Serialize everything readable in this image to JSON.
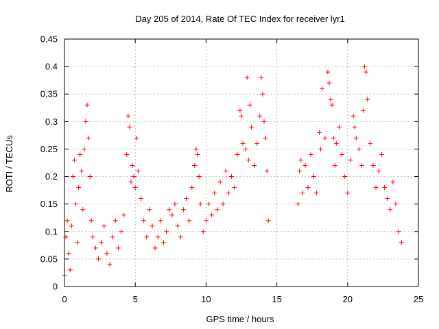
{
  "chart_data": {
    "type": "scatter",
    "title": "Day 205 of 2014, Rate Of TEC Index for receiver lyr1",
    "xlabel": "GPS time / hours",
    "ylabel": "ROTI / TECUs",
    "xlim": [
      0,
      25
    ],
    "ylim": [
      0,
      0.45
    ],
    "xticks": [
      0,
      5,
      10,
      15,
      20,
      25
    ],
    "xtick_labels": [
      "0",
      "5",
      "10",
      "15",
      "20",
      "25"
    ],
    "yticks": [
      0,
      0.05,
      0.1,
      0.15,
      0.2,
      0.25,
      0.3,
      0.35,
      0.4,
      0.45
    ],
    "ytick_labels": [
      "0",
      "0.05",
      "0.1",
      "0.15",
      "0.2",
      "0.25",
      "0.3",
      "0.35",
      "0.4",
      "0.45"
    ],
    "grid": true,
    "marker": "+",
    "marker_color": "#ff0000",
    "data_gap_hours": [
      14.5,
      16.4
    ],
    "series": [
      {
        "name": "ROTI",
        "points": [
          [
            0.0,
            0.02
          ],
          [
            0.1,
            0.09
          ],
          [
            0.2,
            0.12
          ],
          [
            0.3,
            0.06
          ],
          [
            0.4,
            0.03
          ],
          [
            0.5,
            0.11
          ],
          [
            0.6,
            0.2
          ],
          [
            0.7,
            0.23
          ],
          [
            0.8,
            0.15
          ],
          [
            0.9,
            0.08
          ],
          [
            1.0,
            0.18
          ],
          [
            1.1,
            0.24
          ],
          [
            1.2,
            0.21
          ],
          [
            1.3,
            0.14
          ],
          [
            1.4,
            0.25
          ],
          [
            1.5,
            0.3
          ],
          [
            1.6,
            0.33
          ],
          [
            1.7,
            0.27
          ],
          [
            1.8,
            0.2
          ],
          [
            1.9,
            0.12
          ],
          [
            2.0,
            0.09
          ],
          [
            2.2,
            0.07
          ],
          [
            2.4,
            0.05
          ],
          [
            2.6,
            0.08
          ],
          [
            2.8,
            0.11
          ],
          [
            3.0,
            0.06
          ],
          [
            3.2,
            0.04
          ],
          [
            3.4,
            0.09
          ],
          [
            3.6,
            0.12
          ],
          [
            3.8,
            0.07
          ],
          [
            4.0,
            0.1
          ],
          [
            4.2,
            0.13
          ],
          [
            4.4,
            0.24
          ],
          [
            4.5,
            0.31
          ],
          [
            4.6,
            0.29
          ],
          [
            4.7,
            0.19
          ],
          [
            4.8,
            0.22
          ],
          [
            4.9,
            0.2
          ],
          [
            5.0,
            0.18
          ],
          [
            5.1,
            0.27
          ],
          [
            5.2,
            0.21
          ],
          [
            5.4,
            0.16
          ],
          [
            5.6,
            0.12
          ],
          [
            5.8,
            0.09
          ],
          [
            6.0,
            0.14
          ],
          [
            6.2,
            0.11
          ],
          [
            6.4,
            0.07
          ],
          [
            6.6,
            0.09
          ],
          [
            6.8,
            0.12
          ],
          [
            7.0,
            0.08
          ],
          [
            7.2,
            0.1
          ],
          [
            7.4,
            0.14
          ],
          [
            7.6,
            0.13
          ],
          [
            7.8,
            0.15
          ],
          [
            8.0,
            0.11
          ],
          [
            8.2,
            0.09
          ],
          [
            8.4,
            0.14
          ],
          [
            8.6,
            0.16
          ],
          [
            8.8,
            0.12
          ],
          [
            9.0,
            0.18
          ],
          [
            9.2,
            0.22
          ],
          [
            9.3,
            0.25
          ],
          [
            9.4,
            0.24
          ],
          [
            9.5,
            0.2
          ],
          [
            9.6,
            0.15
          ],
          [
            9.8,
            0.1
          ],
          [
            10.0,
            0.12
          ],
          [
            10.2,
            0.15
          ],
          [
            10.4,
            0.13
          ],
          [
            10.6,
            0.17
          ],
          [
            10.8,
            0.14
          ],
          [
            11.0,
            0.19
          ],
          [
            11.2,
            0.15
          ],
          [
            11.4,
            0.21
          ],
          [
            11.6,
            0.17
          ],
          [
            11.8,
            0.2
          ],
          [
            12.0,
            0.18
          ],
          [
            12.2,
            0.24
          ],
          [
            12.4,
            0.32
          ],
          [
            12.5,
            0.31
          ],
          [
            12.6,
            0.26
          ],
          [
            12.8,
            0.25
          ],
          [
            12.9,
            0.38
          ],
          [
            13.0,
            0.23
          ],
          [
            13.1,
            0.33
          ],
          [
            13.2,
            0.29
          ],
          [
            13.4,
            0.22
          ],
          [
            13.6,
            0.26
          ],
          [
            13.8,
            0.31
          ],
          [
            13.9,
            0.38
          ],
          [
            14.0,
            0.35
          ],
          [
            14.1,
            0.3
          ],
          [
            14.2,
            0.27
          ],
          [
            14.3,
            0.21
          ],
          [
            14.4,
            0.12
          ],
          [
            16.5,
            0.15
          ],
          [
            16.6,
            0.21
          ],
          [
            16.7,
            0.23
          ],
          [
            16.8,
            0.17
          ],
          [
            17.0,
            0.22
          ],
          [
            17.2,
            0.18
          ],
          [
            17.4,
            0.24
          ],
          [
            17.6,
            0.2
          ],
          [
            17.8,
            0.17
          ],
          [
            18.0,
            0.28
          ],
          [
            18.1,
            0.25
          ],
          [
            18.2,
            0.36
          ],
          [
            18.4,
            0.27
          ],
          [
            18.6,
            0.39
          ],
          [
            18.7,
            0.37
          ],
          [
            18.8,
            0.34
          ],
          [
            18.9,
            0.33
          ],
          [
            19.0,
            0.27
          ],
          [
            19.1,
            0.22
          ],
          [
            19.2,
            0.26
          ],
          [
            19.4,
            0.29
          ],
          [
            19.6,
            0.24
          ],
          [
            19.8,
            0.2
          ],
          [
            20.0,
            0.17
          ],
          [
            20.2,
            0.23
          ],
          [
            20.4,
            0.31
          ],
          [
            20.5,
            0.29
          ],
          [
            20.6,
            0.27
          ],
          [
            20.8,
            0.25
          ],
          [
            21.0,
            0.22
          ],
          [
            21.1,
            0.32
          ],
          [
            21.2,
            0.4
          ],
          [
            21.3,
            0.39
          ],
          [
            21.4,
            0.34
          ],
          [
            21.6,
            0.26
          ],
          [
            21.8,
            0.22
          ],
          [
            22.0,
            0.18
          ],
          [
            22.2,
            0.21
          ],
          [
            22.4,
            0.24
          ],
          [
            22.6,
            0.18
          ],
          [
            22.8,
            0.16
          ],
          [
            23.0,
            0.14
          ],
          [
            23.2,
            0.19
          ],
          [
            23.4,
            0.15
          ],
          [
            23.6,
            0.1
          ],
          [
            23.8,
            0.08
          ]
        ]
      }
    ]
  }
}
